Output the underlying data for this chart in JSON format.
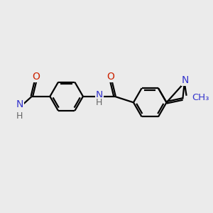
{
  "background_color": "#ebebeb",
  "bond_color": "#000000",
  "nitrogen_color": "#3333cc",
  "oxygen_color": "#cc2200",
  "hydrogen_color": "#666666",
  "line_width": 1.6,
  "figsize": [
    3.0,
    3.0
  ],
  "dpi": 100,
  "xlim": [
    0,
    10
  ],
  "ylim": [
    0,
    10
  ]
}
